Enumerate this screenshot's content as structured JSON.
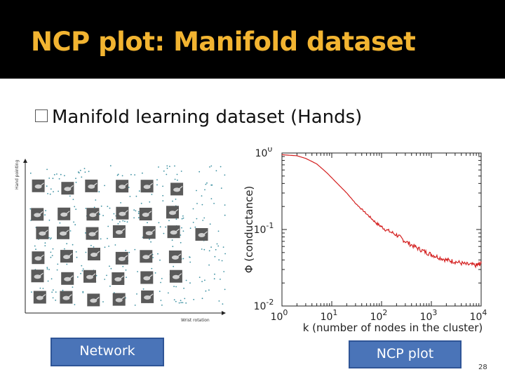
{
  "slide": {
    "title": "NCP plot: Manifold dataset",
    "bullet": "Manifold learning dataset (Hands)",
    "network_label": "Network",
    "ncp_label": "NCP plot",
    "page_number": "28",
    "title_color": "#f2b431",
    "box_color": "#4a74b8"
  },
  "network_plot": {
    "ylabel": "Hand pointing",
    "xlabel": "Wrist rotation"
  },
  "chart_data": {
    "type": "line",
    "xlabel": "k (number of nodes in the cluster)",
    "ylabel": "Φ (conductance)",
    "x_scale": "log",
    "y_scale": "log",
    "xlim": [
      1,
      10000
    ],
    "ylim": [
      0.01,
      1
    ],
    "x_ticks": [
      {
        "base": "10",
        "exp": "0"
      },
      {
        "base": "10",
        "exp": "1"
      },
      {
        "base": "10",
        "exp": "2"
      },
      {
        "base": "10",
        "exp": "3"
      },
      {
        "base": "10",
        "exp": "4"
      }
    ],
    "y_ticks": [
      {
        "base": "10",
        "exp": "0"
      },
      {
        "base": "10",
        "exp": "-1"
      },
      {
        "base": "10",
        "exp": "-2"
      }
    ],
    "series": [
      {
        "color": "#d42020",
        "x": [
          1,
          2,
          3,
          5,
          8,
          12,
          20,
          30,
          50,
          80,
          120,
          200,
          300,
          500,
          800,
          1200,
          2000,
          3000,
          5000,
          8000,
          10000
        ],
        "y": [
          0.95,
          0.92,
          0.85,
          0.72,
          0.55,
          0.42,
          0.3,
          0.22,
          0.16,
          0.12,
          0.1,
          0.085,
          0.07,
          0.058,
          0.05,
          0.045,
          0.04,
          0.038,
          0.035,
          0.034,
          0.036
        ]
      }
    ],
    "grid": false
  }
}
